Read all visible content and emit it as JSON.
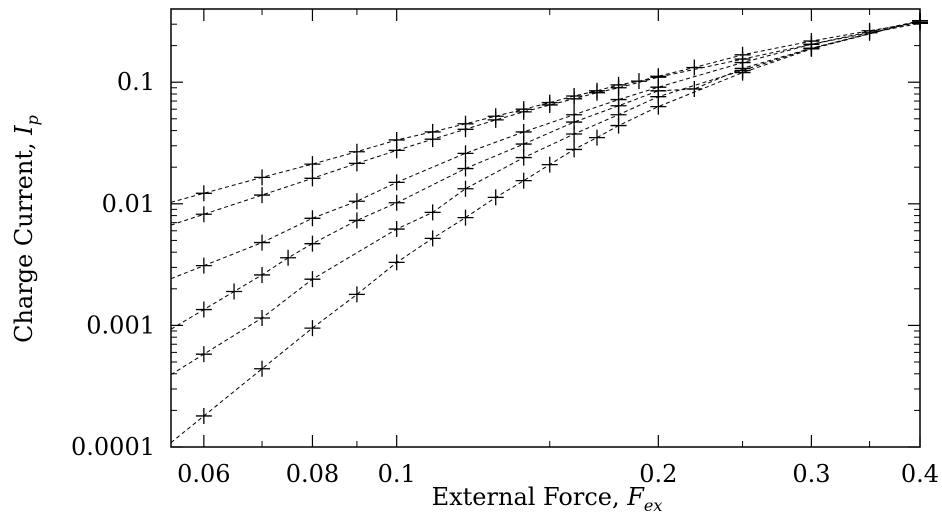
{
  "chart_data": {
    "type": "scatter",
    "xlabel": {
      "text": "External Force, ",
      "symbol": "F",
      "sub": "ex"
    },
    "ylabel": {
      "text": "Charge Current, ",
      "symbol": "I",
      "sub": "p"
    },
    "xscale": "log",
    "yscale": "log",
    "xlim": [
      0.055,
      0.4
    ],
    "ylim": [
      0.0001,
      0.4
    ],
    "xticks": [
      {
        "value": 0.06,
        "label": "0.06"
      },
      {
        "value": 0.08,
        "label": "0.08"
      },
      {
        "value": 0.1,
        "label": "0.1"
      },
      {
        "value": 0.2,
        "label": "0.2"
      },
      {
        "value": 0.3,
        "label": "0.3"
      },
      {
        "value": 0.4,
        "label": "0.4"
      }
    ],
    "yticks": [
      {
        "value": 0.0001,
        "label": "0.0001"
      },
      {
        "value": 0.001,
        "label": "0.001"
      },
      {
        "value": 0.01,
        "label": "0.01"
      },
      {
        "value": 0.1,
        "label": "0.1"
      }
    ],
    "grid": false,
    "legend": "none",
    "marker": "plus",
    "line_style": "dashed",
    "series": [
      {
        "points": [
          [
            0.06,
            0.0122
          ],
          [
            0.07,
            0.0165
          ],
          [
            0.08,
            0.0212
          ],
          [
            0.09,
            0.0268
          ],
          [
            0.1,
            0.0335
          ],
          [
            0.11,
            0.039
          ],
          [
            0.12,
            0.0455
          ],
          [
            0.13,
            0.0525
          ],
          [
            0.14,
            0.06
          ],
          [
            0.15,
            0.068
          ],
          [
            0.16,
            0.077
          ],
          [
            0.17,
            0.085
          ],
          [
            0.18,
            0.095
          ],
          [
            0.19,
            0.102
          ],
          [
            0.2,
            0.112
          ],
          [
            0.22,
            0.132
          ],
          [
            0.25,
            0.168
          ],
          [
            0.3,
            0.218
          ],
          [
            0.35,
            0.265
          ],
          [
            0.4,
            0.31
          ]
        ]
      },
      {
        "points": [
          [
            0.06,
            0.0082
          ],
          [
            0.07,
            0.0118
          ],
          [
            0.08,
            0.0162
          ],
          [
            0.09,
            0.0215
          ],
          [
            0.1,
            0.0275
          ],
          [
            0.11,
            0.034
          ],
          [
            0.12,
            0.041
          ],
          [
            0.13,
            0.049
          ],
          [
            0.14,
            0.057
          ],
          [
            0.15,
            0.065
          ],
          [
            0.16,
            0.073
          ],
          [
            0.17,
            0.082
          ],
          [
            0.18,
            0.09
          ],
          [
            0.2,
            0.11
          ],
          [
            0.25,
            0.155
          ],
          [
            0.3,
            0.205
          ],
          [
            0.35,
            0.255
          ],
          [
            0.4,
            0.305
          ]
        ]
      },
      {
        "points": [
          [
            0.06,
            0.0031
          ],
          [
            0.07,
            0.0048
          ],
          [
            0.08,
            0.0076
          ],
          [
            0.09,
            0.0105
          ],
          [
            0.1,
            0.015
          ],
          [
            0.12,
            0.026
          ],
          [
            0.14,
            0.039
          ],
          [
            0.16,
            0.054
          ],
          [
            0.18,
            0.072
          ],
          [
            0.2,
            0.091
          ],
          [
            0.25,
            0.145
          ],
          [
            0.3,
            0.205
          ],
          [
            0.4,
            0.32
          ]
        ]
      },
      {
        "points": [
          [
            0.06,
            0.00135
          ],
          [
            0.065,
            0.0019
          ],
          [
            0.07,
            0.0026
          ],
          [
            0.075,
            0.0036
          ],
          [
            0.08,
            0.0047
          ],
          [
            0.09,
            0.0073
          ],
          [
            0.1,
            0.0102
          ],
          [
            0.12,
            0.0195
          ],
          [
            0.14,
            0.031
          ],
          [
            0.16,
            0.047
          ],
          [
            0.18,
            0.064
          ],
          [
            0.2,
            0.085
          ],
          [
            0.22,
            0.088
          ],
          [
            0.25,
            0.13
          ],
          [
            0.3,
            0.19
          ],
          [
            0.4,
            0.32
          ]
        ]
      },
      {
        "points": [
          [
            0.06,
            0.00058
          ],
          [
            0.07,
            0.00115
          ],
          [
            0.08,
            0.0024
          ],
          [
            0.1,
            0.0062
          ],
          [
            0.11,
            0.0085
          ],
          [
            0.12,
            0.0133
          ],
          [
            0.14,
            0.024
          ],
          [
            0.16,
            0.0375
          ],
          [
            0.18,
            0.054
          ],
          [
            0.2,
            0.076
          ],
          [
            0.25,
            0.125
          ],
          [
            0.3,
            0.19
          ],
          [
            0.4,
            0.32
          ]
        ]
      },
      {
        "points": [
          [
            0.06,
            0.00018
          ],
          [
            0.07,
            0.00044
          ],
          [
            0.08,
            0.00095
          ],
          [
            0.09,
            0.0018
          ],
          [
            0.1,
            0.0033
          ],
          [
            0.11,
            0.0052
          ],
          [
            0.12,
            0.0077
          ],
          [
            0.13,
            0.0113
          ],
          [
            0.14,
            0.0155
          ],
          [
            0.15,
            0.021
          ],
          [
            0.16,
            0.028
          ],
          [
            0.17,
            0.035
          ],
          [
            0.18,
            0.044
          ],
          [
            0.2,
            0.063
          ],
          [
            0.25,
            0.12
          ],
          [
            0.3,
            0.188
          ],
          [
            0.4,
            0.32
          ]
        ]
      }
    ]
  }
}
